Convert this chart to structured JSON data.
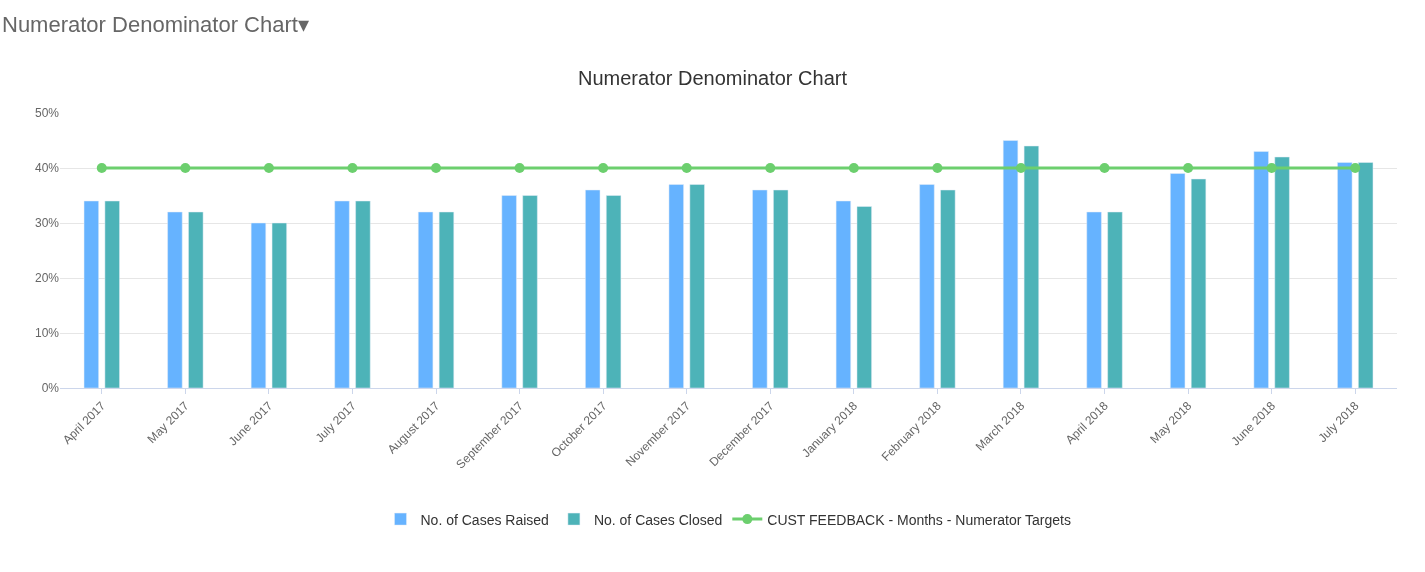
{
  "chart_data": {
    "type": "bar",
    "title": "Numerator Denominator Chart",
    "annotations": [
      "Numerator Denominator Chart▾"
    ],
    "categories": [
      "April 2017",
      "May 2017",
      "June 2017",
      "July 2017",
      "August 2017",
      "September 2017",
      "October 2017",
      "November 2017",
      "December 2017",
      "January 2018",
      "February 2018",
      "March 2018",
      "April 2018",
      "May 2018",
      "June 2018",
      "July 2018"
    ],
    "series": [
      {
        "name": "No. of Cases Raised",
        "color": "#66b3ff",
        "values": [
          34,
          32,
          30,
          34,
          32,
          35,
          36,
          37,
          36,
          34,
          37,
          45,
          32,
          39,
          43,
          41
        ]
      },
      {
        "name": "No. of Cases Closed",
        "color": "#4db3b8",
        "values": [
          34,
          32,
          30,
          34,
          32,
          35,
          35,
          37,
          36,
          33,
          36,
          44,
          32,
          38,
          42,
          41
        ]
      },
      {
        "name": "CUST FEEDBACK - Months - Numerator Targets",
        "type": "line",
        "color": "#6ccf6e",
        "marker": "circle",
        "values": [
          40,
          40,
          40,
          40,
          40,
          40,
          40,
          40,
          40,
          40,
          40,
          40,
          40,
          40,
          40,
          40
        ]
      }
    ],
    "ylim": [
      0,
      50
    ],
    "yticks": [
      {
        "value": 0,
        "label": "0%"
      },
      {
        "value": 10,
        "label": "10%"
      },
      {
        "value": 20,
        "label": "20%"
      },
      {
        "value": 30,
        "label": "30%"
      },
      {
        "value": 40,
        "label": "40%"
      },
      {
        "value": 50,
        "label": "50%"
      }
    ],
    "grid": "y",
    "legend": "bottom"
  }
}
